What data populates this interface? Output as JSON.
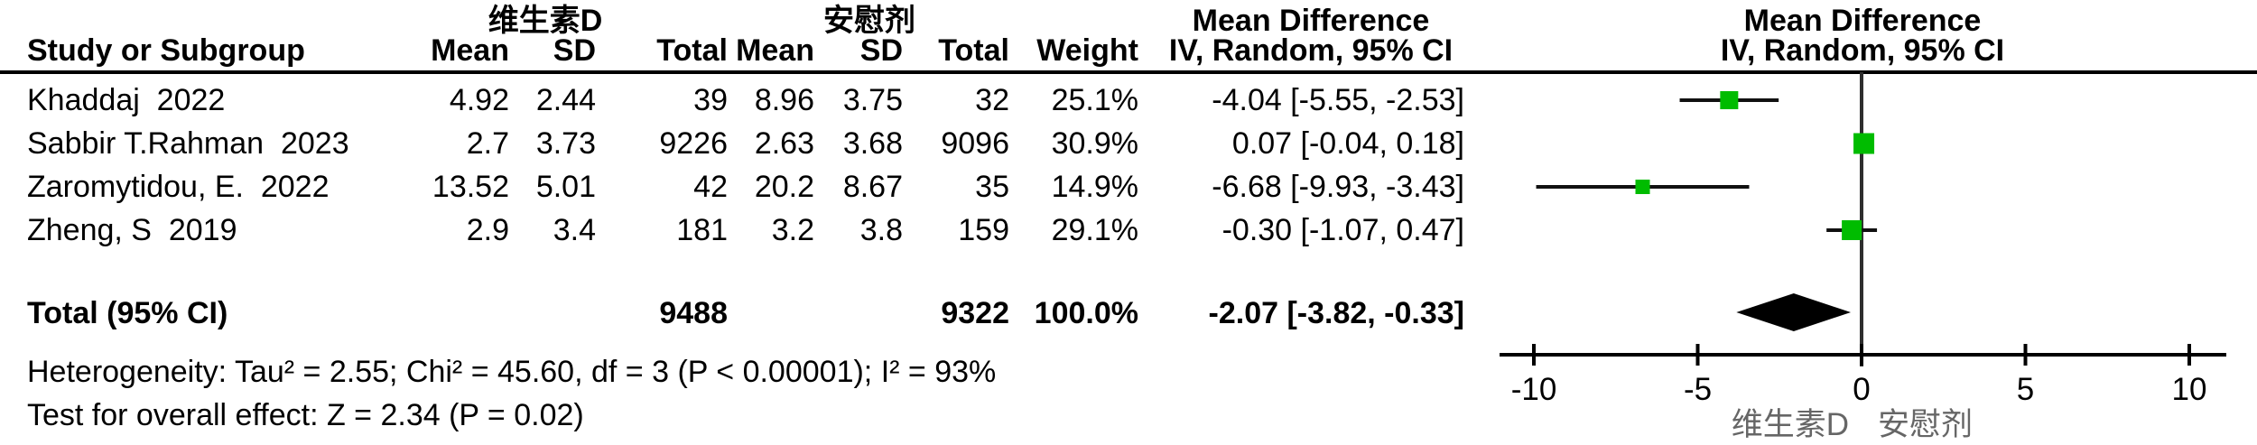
{
  "header": {
    "group1": "维生素D",
    "group2": "安慰剂",
    "effect_title": "Mean Difference",
    "effect_method": "IV, Random, 95% CI",
    "study": "Study or Subgroup",
    "mean": "Mean",
    "sd": "SD",
    "total": "Total",
    "weight": "Weight"
  },
  "rows": [
    {
      "study": "Khaddaj  2022",
      "mean1": "4.92",
      "sd1": "2.44",
      "total1": "39",
      "mean2": "8.96",
      "sd2": "3.75",
      "total2": "32",
      "weight": "25.1%",
      "ci": "-4.04 [-5.55, -2.53]"
    },
    {
      "study": "Sabbir T.Rahman  2023",
      "mean1": "2.7",
      "sd1": "3.73",
      "total1": "9226",
      "mean2": "2.63",
      "sd2": "3.68",
      "total2": "9096",
      "weight": "30.9%",
      "ci": "0.07 [-0.04, 0.18]"
    },
    {
      "study": "Zaromytidou, E.  2022",
      "mean1": "13.52",
      "sd1": "5.01",
      "total1": "42",
      "mean2": "20.2",
      "sd2": "8.67",
      "total2": "35",
      "weight": "14.9%",
      "ci": "-6.68 [-9.93, -3.43]"
    },
    {
      "study": "Zheng, S  2019",
      "mean1": "2.9",
      "sd1": "3.4",
      "total1": "181",
      "mean2": "3.2",
      "sd2": "3.8",
      "total2": "159",
      "weight": "29.1%",
      "ci": "-0.30 [-1.07, 0.47]"
    }
  ],
  "total_row": {
    "label": "Total (95% CI)",
    "total1": "9488",
    "total2": "9322",
    "weight": "100.0%",
    "ci": "-2.07 [-3.82, -0.33]"
  },
  "footnotes": {
    "heterogeneity": "Heterogeneity: Tau² = 2.55; Chi² = 45.60, df = 3 (P < 0.00001); I² = 93%",
    "overall_effect": "Test for overall effect: Z = 2.34 (P = 0.02)"
  },
  "axis": {
    "left_label": "维生素D",
    "right_label": "安慰剂"
  },
  "chart_data": {
    "type": "scatter",
    "subtype": "forest-plot",
    "title": "Mean Difference",
    "effect_measure": "IV, Random, 95% CI",
    "group_labels": [
      "维生素D",
      "安慰剂"
    ],
    "studies": [
      {
        "name": "Khaddaj 2022",
        "md": -4.04,
        "ci_low": -5.55,
        "ci_high": -2.53,
        "weight_pct": 25.1,
        "g1_mean": 4.92,
        "g1_sd": 2.44,
        "g1_total": 39,
        "g2_mean": 8.96,
        "g2_sd": 3.75,
        "g2_total": 32
      },
      {
        "name": "Sabbir T.Rahman 2023",
        "md": 0.07,
        "ci_low": -0.04,
        "ci_high": 0.18,
        "weight_pct": 30.9,
        "g1_mean": 2.7,
        "g1_sd": 3.73,
        "g1_total": 9226,
        "g2_mean": 2.63,
        "g2_sd": 3.68,
        "g2_total": 9096
      },
      {
        "name": "Zaromytidou, E. 2022",
        "md": -6.68,
        "ci_low": -9.93,
        "ci_high": -3.43,
        "weight_pct": 14.9,
        "g1_mean": 13.52,
        "g1_sd": 5.01,
        "g1_total": 42,
        "g2_mean": 20.2,
        "g2_sd": 8.67,
        "g2_total": 35
      },
      {
        "name": "Zheng, S 2019",
        "md": -0.3,
        "ci_low": -1.07,
        "ci_high": 0.47,
        "weight_pct": 29.1,
        "g1_mean": 2.9,
        "g1_sd": 3.4,
        "g1_total": 181,
        "g2_mean": 3.2,
        "g2_sd": 3.8,
        "g2_total": 159
      }
    ],
    "total": {
      "md": -2.07,
      "ci_low": -3.82,
      "ci_high": -0.33,
      "weight_pct": 100.0,
      "g1_total": 9488,
      "g2_total": 9322
    },
    "heterogeneity": {
      "tau2": 2.55,
      "chi2": 45.6,
      "df": 3,
      "p": "< 0.00001",
      "i2_pct": 93
    },
    "overall_effect": {
      "z": 2.34,
      "p": 0.02
    },
    "xlim": [
      -10,
      10
    ],
    "x_ticks": [
      -10,
      -5,
      0,
      5,
      10
    ],
    "marker_color": "#00BC00",
    "diamond_color": "#000000",
    "line_color": "#111111"
  }
}
